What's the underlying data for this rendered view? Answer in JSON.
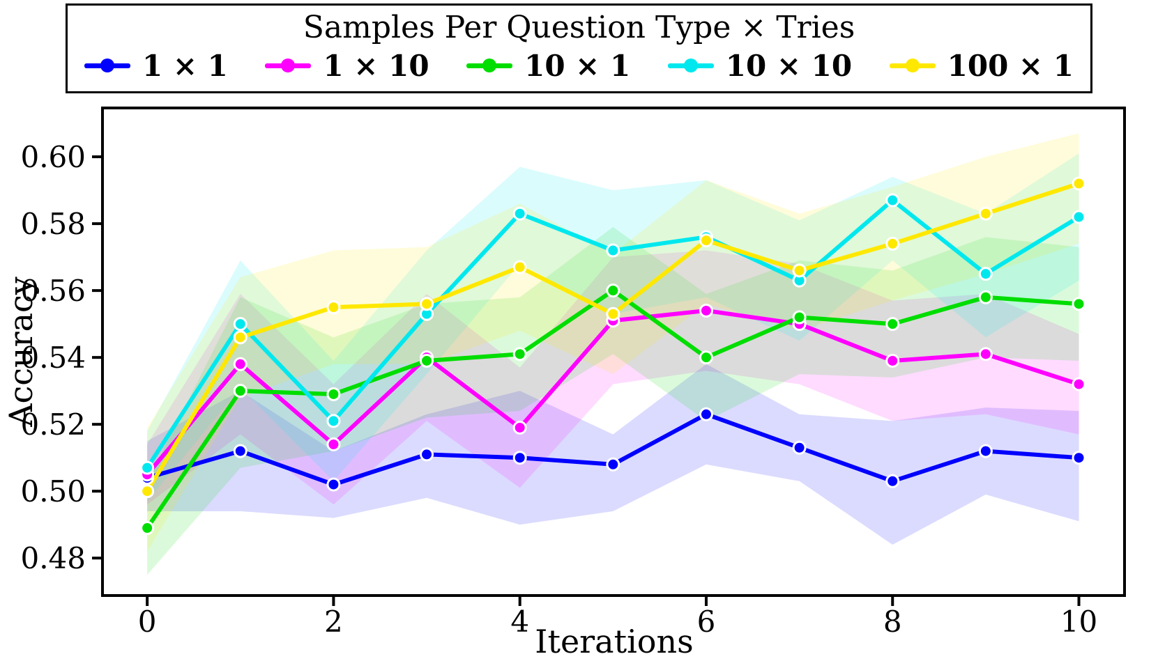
{
  "chart_data": {
    "type": "line",
    "title": "Samples Per Question Type × Tries",
    "xlabel": "Iterations",
    "ylabel": "Accuracy",
    "legend_position": "top",
    "grid": false,
    "x": [
      0,
      1,
      2,
      3,
      4,
      5,
      6,
      7,
      8,
      9,
      10
    ],
    "xlim": [
      -0.48,
      10.49
    ],
    "ylim": [
      0.4688,
      0.6146
    ],
    "xticks": {
      "values": [
        0,
        2,
        4,
        6,
        8,
        10
      ],
      "labels": [
        "0",
        "2",
        "4",
        "6",
        "8",
        "10"
      ]
    },
    "yticks": {
      "values": [
        0.48,
        0.5,
        0.52,
        0.54,
        0.56,
        0.58,
        0.6
      ],
      "labels": [
        "0.48",
        "0.50",
        "0.52",
        "0.54",
        "0.56",
        "0.58",
        "0.60"
      ]
    },
    "band_opacity": 0.14,
    "series": [
      {
        "key": "1x1",
        "name": "1 × 1",
        "color": "#0000FF",
        "values": [
          0.504,
          0.512,
          0.502,
          0.511,
          0.51,
          0.508,
          0.523,
          0.513,
          0.503,
          0.512,
          0.51
        ],
        "band_lower": [
          0.494,
          0.494,
          0.492,
          0.498,
          0.49,
          0.494,
          0.508,
          0.503,
          0.484,
          0.499,
          0.491
        ],
        "band_upper": [
          0.515,
          0.53,
          0.512,
          0.523,
          0.53,
          0.517,
          0.538,
          0.523,
          0.521,
          0.525,
          0.524
        ]
      },
      {
        "key": "1x10",
        "name": "1 × 10",
        "color": "#FF00FF",
        "values": [
          0.505,
          0.538,
          0.514,
          0.54,
          0.519,
          0.551,
          0.554,
          0.55,
          0.539,
          0.541,
          0.532
        ],
        "band_lower": [
          0.496,
          0.517,
          0.496,
          0.521,
          0.501,
          0.532,
          0.536,
          0.532,
          0.521,
          0.523,
          0.517
        ],
        "band_upper": [
          0.514,
          0.559,
          0.532,
          0.559,
          0.537,
          0.57,
          0.572,
          0.568,
          0.557,
          0.559,
          0.547
        ]
      },
      {
        "key": "10x1",
        "name": "10 × 1",
        "color": "#00DD00",
        "values": [
          0.489,
          0.53,
          0.529,
          0.539,
          0.541,
          0.56,
          0.54,
          0.552,
          0.55,
          0.558,
          0.556
        ],
        "band_lower": [
          0.475,
          0.507,
          0.512,
          0.522,
          0.524,
          0.541,
          0.521,
          0.535,
          0.534,
          0.54,
          0.539
        ],
        "band_upper": [
          0.503,
          0.558,
          0.546,
          0.556,
          0.558,
          0.579,
          0.559,
          0.569,
          0.566,
          0.576,
          0.573
        ]
      },
      {
        "key": "10x10",
        "name": "10 × 10",
        "color": "#00E8EE",
        "values": [
          0.507,
          0.55,
          0.521,
          0.553,
          0.583,
          0.572,
          0.576,
          0.563,
          0.587,
          0.565,
          0.582
        ],
        "band_lower": [
          0.497,
          0.531,
          0.503,
          0.535,
          0.568,
          0.553,
          0.558,
          0.545,
          0.569,
          0.546,
          0.563
        ],
        "band_upper": [
          0.518,
          0.569,
          0.539,
          0.572,
          0.597,
          0.59,
          0.593,
          0.581,
          0.594,
          0.583,
          0.601
        ]
      },
      {
        "key": "100x1",
        "name": "100 × 1",
        "color": "#FFE800",
        "values": [
          0.5,
          0.546,
          0.555,
          0.556,
          0.567,
          0.553,
          0.575,
          0.566,
          0.574,
          0.583,
          0.592
        ],
        "band_lower": [
          0.482,
          0.528,
          0.538,
          0.538,
          0.548,
          0.535,
          0.556,
          0.548,
          0.557,
          0.565,
          0.574
        ],
        "band_upper": [
          0.519,
          0.564,
          0.572,
          0.573,
          0.586,
          0.571,
          0.593,
          0.583,
          0.591,
          0.6,
          0.607
        ]
      }
    ]
  }
}
